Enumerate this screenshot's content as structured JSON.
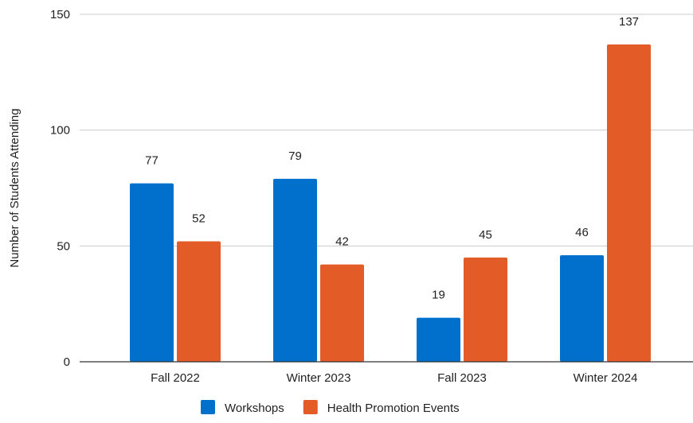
{
  "chart_data": {
    "type": "bar",
    "categories": [
      "Fall 2022",
      "Winter 2023",
      "Fall 2023",
      "Winter 2024"
    ],
    "series": [
      {
        "name": "Workshops",
        "values": [
          77,
          79,
          19,
          46
        ],
        "color": "#0070cc"
      },
      {
        "name": "Health Promotion Events",
        "values": [
          52,
          42,
          45,
          137
        ],
        "color": "#e35b26"
      }
    ],
    "title": "",
    "xlabel": "",
    "ylabel": "Number of Students Attending",
    "ylim": [
      0,
      150
    ],
    "yticks": [
      0,
      50,
      100,
      150
    ],
    "grid": true,
    "legend": "bottom"
  }
}
